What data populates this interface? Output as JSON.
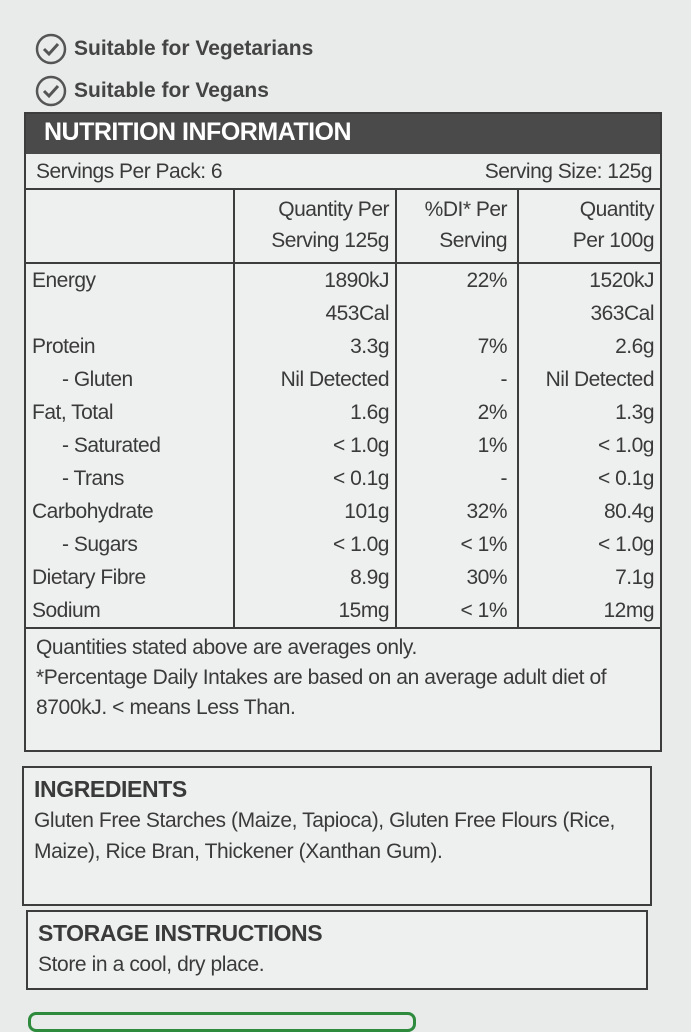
{
  "badges": [
    "Suitable for Vegetarians",
    "Suitable for Vegans"
  ],
  "nutrition": {
    "title": "NUTRITION INFORMATION",
    "servings_per_pack": "Servings Per Pack: 6",
    "serving_size": "Serving Size: 125g",
    "headers": [
      [
        "Quantity Per",
        "Serving 125g"
      ],
      [
        "%DI* Per",
        "Serving"
      ],
      [
        "Quantity",
        "Per 100g"
      ]
    ],
    "rows": [
      {
        "label": "Energy",
        "serving": [
          "1890kJ",
          "453Cal"
        ],
        "di": "22%",
        "per100g": [
          "1520kJ",
          "363Cal"
        ]
      },
      {
        "label": "Protein",
        "serving": "3.3g",
        "di": "7%",
        "per100g": "2.6g"
      },
      {
        "label": "- Gluten",
        "serving": "Nil Detected",
        "di": "-",
        "per100g": "Nil Detected"
      },
      {
        "label": "Fat, Total",
        "serving": "1.6g",
        "di": "2%",
        "per100g": "1.3g"
      },
      {
        "label": "- Saturated",
        "serving": "< 1.0g",
        "di": "1%",
        "per100g": "< 1.0g"
      },
      {
        "label": "- Trans",
        "serving": "< 0.1g",
        "di": "-",
        "per100g": "< 0.1g"
      },
      {
        "label": "Carbohydrate",
        "serving": "101g",
        "di": "32%",
        "per100g": "80.4g"
      },
      {
        "label": "- Sugars",
        "serving": "< 1.0g",
        "di": "< 1%",
        "per100g": "< 1.0g"
      },
      {
        "label": "Dietary Fibre",
        "serving": "8.9g",
        "di": "30%",
        "per100g": "7.1g"
      },
      {
        "label": "Sodium",
        "serving": "15mg",
        "di": "< 1%",
        "per100g": "12mg"
      }
    ],
    "notes": [
      "Quantities stated above are averages only.",
      "*Percentage Daily Intakes are based on an average adult diet of 8700kJ. < means Less Than."
    ]
  },
  "ingredients": {
    "title": "INGREDIENTS",
    "text": "Gluten Free Starches (Maize, Tapioca), Gluten Free Flours (Rice, Maize), Rice Bran, Thickener (Xanthan Gum)."
  },
  "storage": {
    "title": "STORAGE INSTRUCTIONS",
    "text": "Store in a cool, dry place."
  }
}
